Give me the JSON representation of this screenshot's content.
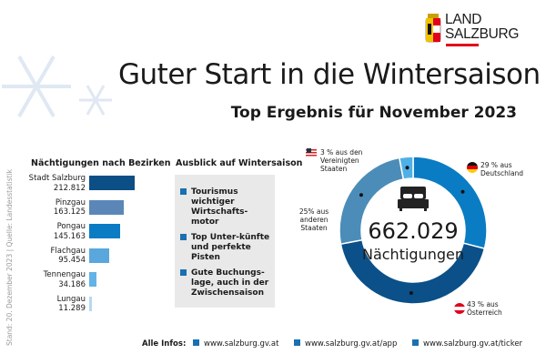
{
  "logo": {
    "line1": "LAND",
    "line2": "SALZBURG"
  },
  "title": "Guter Start in die Wintersaison",
  "subtitle": "Top Ergebnis für November 2023",
  "source": "Stand: 20. Dezember 2023 | Quelle: Landesstatistik",
  "outlook": {
    "heading": "Ausblick auf Wintersaison",
    "items": [
      "Tourismus wichtiger Wirtschafts-motor",
      "Top Unter-künfte und perfekte Pisten",
      "Gute Buchungs-lage, auch in der Zwischensaison"
    ]
  },
  "footer": {
    "label": "Alle Infos:",
    "links": [
      "www.salzburg.gv.at",
      "www.salzburg.gv.at/app",
      "www.salzburg.gv.at/ticker"
    ]
  },
  "chart_data": [
    {
      "type": "bar",
      "orientation": "horizontal",
      "title": "Nächtigungen nach Bezirken",
      "categories": [
        "Stadt Salzburg",
        "Pinzgau",
        "Pongau",
        "Flachgau",
        "Tennengau",
        "Lungau"
      ],
      "values": [
        212812,
        163125,
        145163,
        95454,
        34186,
        11289
      ],
      "value_labels": [
        "212.812",
        "163.125",
        "145.163",
        "95.454",
        "34.186",
        "11.289"
      ],
      "colors": [
        "#0b4f86",
        "#5b87b8",
        "#0a7cc4",
        "#5aa7dd",
        "#63b3e6",
        "#b6d8f2"
      ]
    },
    {
      "type": "pie",
      "style": "donut",
      "center_value": "662.029",
      "center_label": "Nächtigungen",
      "slices": [
        {
          "label": "29 % aus Deutschland",
          "value": 29,
          "color": "#0a7cc4",
          "flag": "germany-flag"
        },
        {
          "label": "43 % aus Österreich",
          "value": 43,
          "color": "#0b5088",
          "flag": "austria-flag"
        },
        {
          "label": "25% aus anderen Staaten",
          "value": 25,
          "color": "#4b8db8"
        },
        {
          "label": "3 % aus den Vereinigten Staaten",
          "value": 3,
          "color": "#4fb0e8",
          "flag": "usa-flag"
        }
      ]
    }
  ]
}
